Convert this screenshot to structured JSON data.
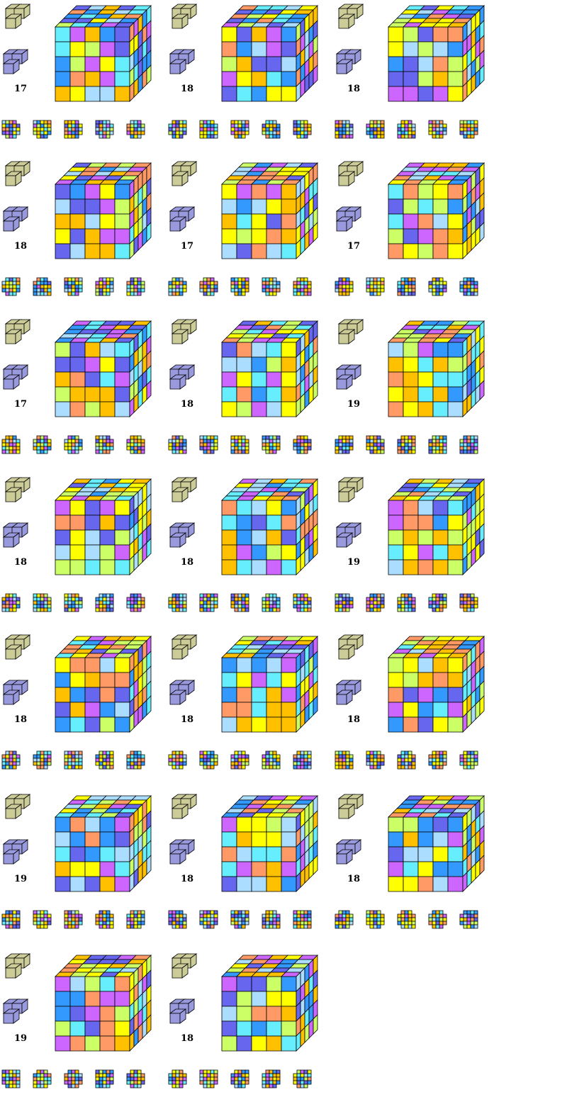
{
  "palette": [
    "#ffff00",
    "#ffc000",
    "#3399ff",
    "#6666ee",
    "#66eeff",
    "#cc66ff",
    "#ff9966",
    "#ccff66",
    "#aaddff"
  ],
  "piece_colors": {
    "top_piece": "#cccc99",
    "bottom_piece": "#9999dd"
  },
  "rows": [
    {
      "puzzles": [
        {
          "count": "17"
        },
        {
          "count": "18"
        },
        {
          "count": "18"
        }
      ]
    },
    {
      "puzzles": [
        {
          "count": "18"
        },
        {
          "count": "17"
        },
        {
          "count": "17"
        }
      ]
    },
    {
      "puzzles": [
        {
          "count": "17"
        },
        {
          "count": "18"
        },
        {
          "count": "19"
        }
      ]
    },
    {
      "puzzles": [
        {
          "count": "18"
        },
        {
          "count": "18"
        },
        {
          "count": "19"
        }
      ]
    },
    {
      "puzzles": [
        {
          "count": "18"
        },
        {
          "count": "18"
        },
        {
          "count": "18"
        }
      ]
    },
    {
      "puzzles": [
        {
          "count": "19"
        },
        {
          "count": "18"
        },
        {
          "count": "18"
        }
      ]
    },
    {
      "puzzles": [
        {
          "count": "19"
        },
        {
          "count": "18"
        }
      ]
    }
  ]
}
